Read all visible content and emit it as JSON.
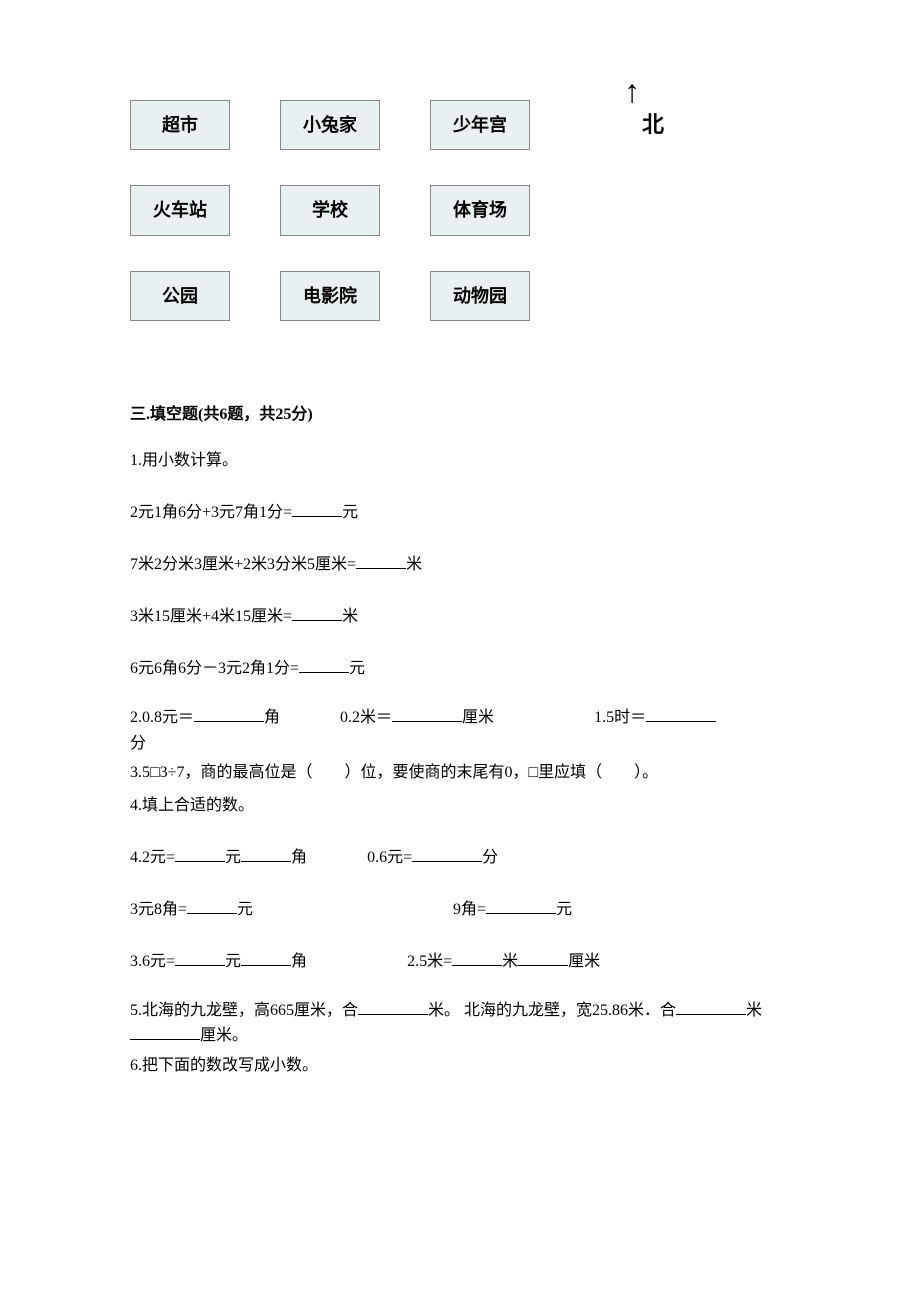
{
  "map": {
    "north_label": "北",
    "boxes": [
      {
        "label": "超市"
      },
      {
        "label": "小兔家"
      },
      {
        "label": "少年宫"
      },
      {
        "label": "火车站"
      },
      {
        "label": "学校"
      },
      {
        "label": "体育场"
      },
      {
        "label": "公园"
      },
      {
        "label": "电影院"
      },
      {
        "label": "动物园"
      }
    ],
    "box_bg_color": "#e8f0f2",
    "box_border_color": "#888888"
  },
  "section3": {
    "title": "三.填空题(共6题，共25分)",
    "q1": {
      "stem": "1.用小数计算。",
      "line1_a": "2元1角6分+3元7角1分=",
      "line1_b": "元",
      "line2_a": "7米2分米3厘米+2米3分米5厘米=",
      "line2_b": "米",
      "line3_a": "3米15厘米+4米15厘米=",
      "line3_b": "米",
      "line4_a": "6元6角6分－3元2角1分=",
      "line4_b": "元"
    },
    "q2": {
      "p1a": "2.0.8元＝",
      "p1b": "角",
      "p2a": "0.2米＝",
      "p2b": "厘米",
      "p3a": "1.5时＝",
      "p3b": "分"
    },
    "q3": {
      "text_a": "3.5□3÷7，商的最高位是（　　）位，要使商的末尾有0，□里应填（　　）。"
    },
    "q4": {
      "stem": "4.填上合适的数。",
      "l1a": "4.2元=",
      "l1b": "元",
      "l1c": "角",
      "l1d": "0.6元=",
      "l1e": "分",
      "l2a": "3元8角=",
      "l2b": "元",
      "l2c": "9角=",
      "l2d": "元",
      "l3a": "3.6元=",
      "l3b": "元",
      "l3c": "角",
      "l3d": "2.5米=",
      "l3e": "米",
      "l3f": "厘米"
    },
    "q5": {
      "a": "5.北海的九龙壁，高665厘米，合",
      "b": "米。 北海的九龙壁，宽25.86米．合",
      "c": "米",
      "d": "厘米。"
    },
    "q6": {
      "text": "6.把下面的数改写成小数。"
    }
  }
}
